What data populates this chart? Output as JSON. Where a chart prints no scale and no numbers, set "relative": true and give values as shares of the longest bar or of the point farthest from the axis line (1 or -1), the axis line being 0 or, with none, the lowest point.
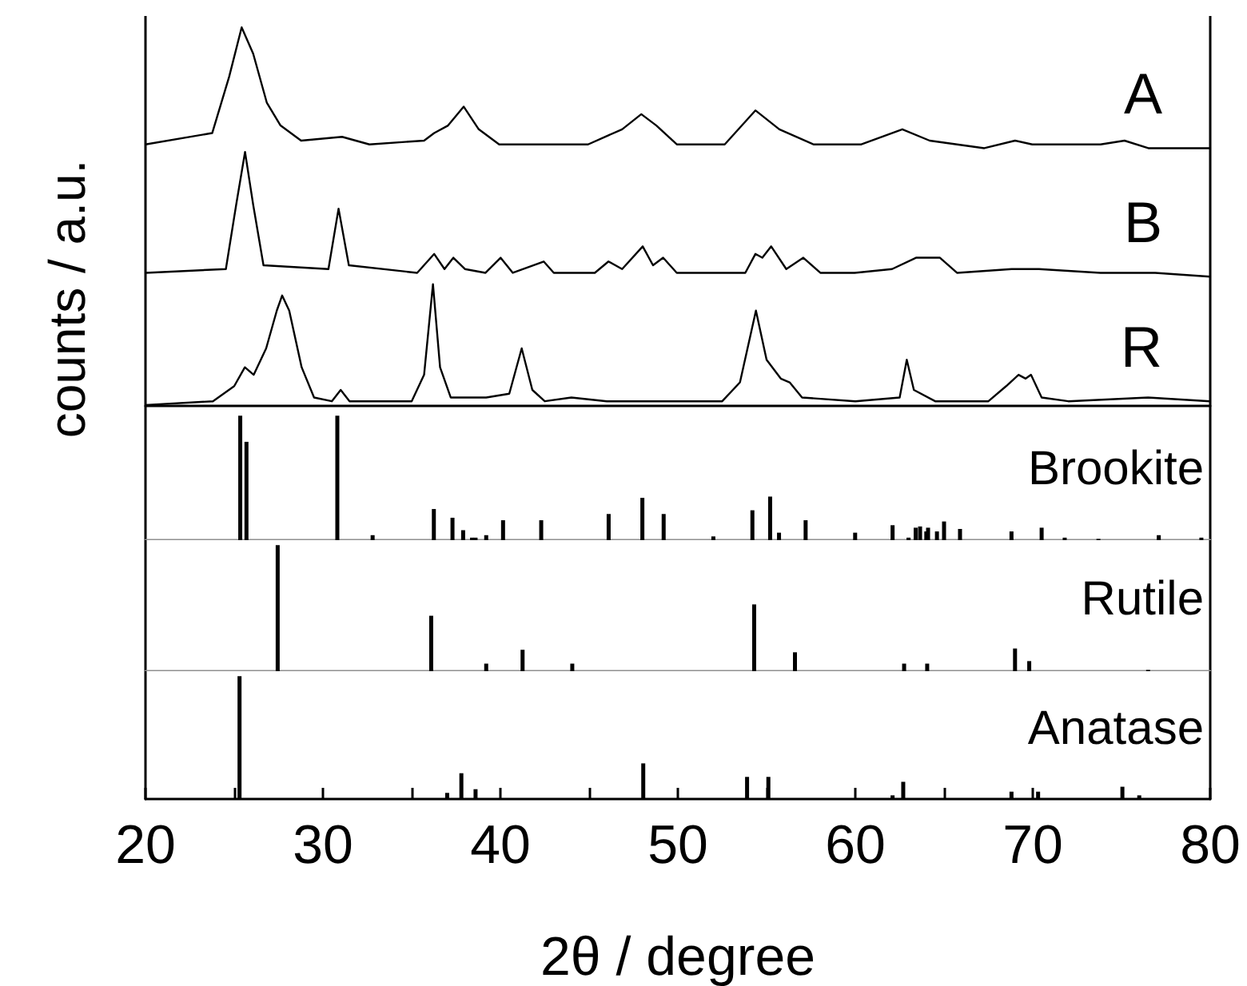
{
  "chart_data": [
    {
      "type": "line",
      "ylabel": "counts / a.u.",
      "relative": true,
      "xlim": [
        20,
        80
      ],
      "tick_labels": false,
      "marker": "none",
      "line_style": "solid",
      "series": [
        {
          "name": "A",
          "color": "#000000",
          "x": [
            20.0,
            23.76,
            24.72,
            25.42,
            26.07,
            26.84,
            27.61,
            28.77,
            31.08,
            32.62,
            35.7,
            36.27,
            37.05,
            37.93,
            38.78,
            39.93,
            44.94,
            46.86,
            47.94,
            48.79,
            49.94,
            52.64,
            54.37,
            55.72,
            57.64,
            60.34,
            62.65,
            64.19,
            67.27,
            69.0,
            69.97,
            73.82,
            75.17,
            76.51,
            80.0
          ],
          "values": [
            0.69,
            0.72,
            0.87,
            1.0,
            0.93,
            0.8,
            0.74,
            0.7,
            0.71,
            0.69,
            0.7,
            0.72,
            0.74,
            0.79,
            0.73,
            0.69,
            0.69,
            0.73,
            0.77,
            0.74,
            0.69,
            0.69,
            0.78,
            0.73,
            0.69,
            0.69,
            0.73,
            0.7,
            0.68,
            0.7,
            0.69,
            0.69,
            0.7,
            0.68,
            0.68
          ]
        },
        {
          "name": "B",
          "color": "#000000",
          "x": [
            20.0,
            24.53,
            25.11,
            25.61,
            26.07,
            26.65,
            30.31,
            30.88,
            31.46,
            35.31,
            36.27,
            36.85,
            37.35,
            38.0,
            39.16,
            40.01,
            40.7,
            42.44,
            43.01,
            45.32,
            46.09,
            46.86,
            48.02,
            48.6,
            49.17,
            49.94,
            53.8,
            54.37,
            54.76,
            55.26,
            56.11,
            57.07,
            58.03,
            59.96,
            62.07,
            63.42,
            64.77,
            65.73,
            68.81,
            70.35,
            73.82,
            76.9,
            80.0
          ],
          "values": [
            0.35,
            0.36,
            0.53,
            0.67,
            0.53,
            0.37,
            0.36,
            0.52,
            0.37,
            0.35,
            0.4,
            0.36,
            0.39,
            0.36,
            0.35,
            0.39,
            0.35,
            0.38,
            0.35,
            0.35,
            0.38,
            0.36,
            0.42,
            0.37,
            0.39,
            0.35,
            0.35,
            0.4,
            0.39,
            0.42,
            0.36,
            0.39,
            0.35,
            0.35,
            0.36,
            0.39,
            0.39,
            0.35,
            0.36,
            0.36,
            0.35,
            0.35,
            0.34
          ]
        },
        {
          "name": "R",
          "color": "#000000",
          "x": [
            20.0,
            23.8,
            25.0,
            25.6,
            26.1,
            26.8,
            27.4,
            27.7,
            28.1,
            28.8,
            29.5,
            30.5,
            31.0,
            31.5,
            35.0,
            35.7,
            36.2,
            36.6,
            37.2,
            39.2,
            40.5,
            41.2,
            41.8,
            42.5,
            44.0,
            46.0,
            48.0,
            52.5,
            53.5,
            54.4,
            55.0,
            55.8,
            56.3,
            57.0,
            60.0,
            62.5,
            62.9,
            63.3,
            64.5,
            67.5,
            68.5,
            69.2,
            69.6,
            69.9,
            70.5,
            72.0,
            76.5,
            80.0
          ],
          "values": [
            0.0,
            0.01,
            0.05,
            0.1,
            0.08,
            0.15,
            0.25,
            0.29,
            0.25,
            0.1,
            0.02,
            0.01,
            0.04,
            0.01,
            0.01,
            0.08,
            0.32,
            0.1,
            0.02,
            0.02,
            0.03,
            0.15,
            0.04,
            0.01,
            0.02,
            0.01,
            0.01,
            0.01,
            0.06,
            0.25,
            0.12,
            0.07,
            0.06,
            0.02,
            0.01,
            0.02,
            0.12,
            0.04,
            0.01,
            0.01,
            0.05,
            0.08,
            0.07,
            0.08,
            0.02,
            0.01,
            0.02,
            0.01
          ]
        }
      ]
    },
    {
      "type": "bar",
      "relative": true,
      "xlim": [
        20,
        80
      ],
      "tick_labels": false,
      "series": [
        {
          "name": "Brookite",
          "color": "#000000",
          "x": [
            25.34,
            25.69,
            30.81,
            32.8,
            36.25,
            37.3,
            37.9,
            38.4,
            38.6,
            39.2,
            40.15,
            42.3,
            46.1,
            48.0,
            49.2,
            52.0,
            54.2,
            55.2,
            55.7,
            57.2,
            59.99,
            62.1,
            63.0,
            63.4,
            63.65,
            64.0,
            64.1,
            64.6,
            65.0,
            65.9,
            68.8,
            70.5,
            71.8,
            73.7,
            77.1,
            79.5
          ],
          "values": [
            1.0,
            0.79,
            1.0,
            0.04,
            0.25,
            0.18,
            0.08,
            0.02,
            0.02,
            0.04,
            0.16,
            0.16,
            0.21,
            0.34,
            0.21,
            0.03,
            0.24,
            0.35,
            0.06,
            0.16,
            0.06,
            0.12,
            0.02,
            0.1,
            0.11,
            0.07,
            0.1,
            0.07,
            0.15,
            0.09,
            0.07,
            0.1,
            0.02,
            0.01,
            0.04,
            0.02
          ]
        }
      ]
    },
    {
      "type": "bar",
      "relative": true,
      "xlim": [
        20,
        80
      ],
      "tick_labels": false,
      "series": [
        {
          "name": "Rutile",
          "color": "#000000",
          "x": [
            27.45,
            36.1,
            39.2,
            41.25,
            44.05,
            54.3,
            56.6,
            62.75,
            64.05,
            69.0,
            69.8,
            76.5
          ],
          "values": [
            1.0,
            0.44,
            0.06,
            0.17,
            0.06,
            0.53,
            0.15,
            0.06,
            0.06,
            0.18,
            0.08,
            0.01
          ]
        }
      ]
    },
    {
      "type": "bar",
      "relative": true,
      "xlim": [
        20,
        80
      ],
      "xlabel": "2θ / degree",
      "tick_labels": "x",
      "xticks": [
        20,
        {
          "value": 25,
          "label": null
        },
        30,
        {
          "value": 35,
          "label": null
        },
        40,
        {
          "value": 45,
          "label": null
        },
        50,
        {
          "value": 55,
          "label": null
        },
        60,
        {
          "value": 65,
          "label": null
        },
        70,
        {
          "value": 75,
          "label": null
        },
        80
      ],
      "series": [
        {
          "name": "Anatase",
          "color": "#000000",
          "x": [
            25.3,
            37.0,
            37.8,
            38.6,
            48.05,
            53.9,
            55.1,
            62.1,
            62.7,
            68.8,
            70.3,
            75.05,
            76.0
          ],
          "values": [
            1.0,
            0.05,
            0.21,
            0.08,
            0.29,
            0.18,
            0.18,
            0.03,
            0.14,
            0.06,
            0.06,
            0.1,
            0.03
          ]
        }
      ]
    }
  ]
}
